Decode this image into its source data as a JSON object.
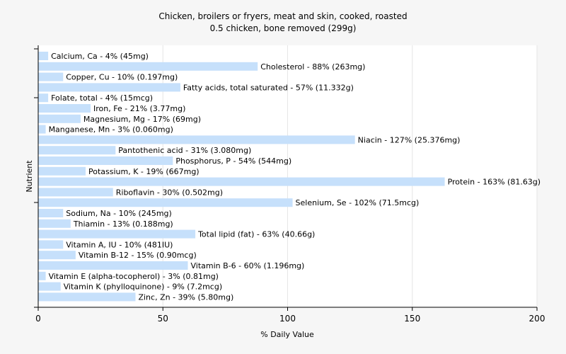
{
  "chart_data": {
    "type": "bar",
    "orientation": "horizontal",
    "title": "Chicken, broilers or fryers, meat and skin, cooked, roasted",
    "subtitle": "0.5 chicken, bone removed (299g)",
    "xlabel": "% Daily Value",
    "ylabel": "Nutrient",
    "xlim": [
      0,
      200
    ],
    "xticks": [
      "0",
      "50",
      "100",
      "150",
      "200"
    ],
    "xtick_values": [
      0,
      50,
      100,
      150,
      200
    ],
    "grid": "vertical",
    "bar_color": "#c6e0fb",
    "background": "#f6f6f6",
    "plot_background": "#ffffff",
    "bars": [
      {
        "label": "Calcium, Ca - 4% (45mg)",
        "value": 4
      },
      {
        "label": "Cholesterol - 88% (263mg)",
        "value": 88
      },
      {
        "label": "Copper, Cu - 10% (0.197mg)",
        "value": 10
      },
      {
        "label": "Fatty acids, total saturated - 57% (11.332g)",
        "value": 57
      },
      {
        "label": "Folate, total - 4% (15mcg)",
        "value": 4
      },
      {
        "label": "Iron, Fe - 21% (3.77mg)",
        "value": 21
      },
      {
        "label": "Magnesium, Mg - 17% (69mg)",
        "value": 17
      },
      {
        "label": "Manganese, Mn - 3% (0.060mg)",
        "value": 3
      },
      {
        "label": "Niacin - 127% (25.376mg)",
        "value": 127
      },
      {
        "label": "Pantothenic acid - 31% (3.080mg)",
        "value": 31
      },
      {
        "label": "Phosphorus, P - 54% (544mg)",
        "value": 54
      },
      {
        "label": "Potassium, K - 19% (667mg)",
        "value": 19
      },
      {
        "label": "Protein - 163% (81.63g)",
        "value": 163
      },
      {
        "label": "Riboflavin - 30% (0.502mg)",
        "value": 30
      },
      {
        "label": "Selenium, Se - 102% (71.5mcg)",
        "value": 102
      },
      {
        "label": "Sodium, Na - 10% (245mg)",
        "value": 10
      },
      {
        "label": "Thiamin - 13% (0.188mg)",
        "value": 13
      },
      {
        "label": "Total lipid (fat) - 63% (40.66g)",
        "value": 63
      },
      {
        "label": "Vitamin A, IU - 10% (481IU)",
        "value": 10
      },
      {
        "label": "Vitamin B-12 - 15% (0.90mcg)",
        "value": 15
      },
      {
        "label": "Vitamin B-6 - 60% (1.196mg)",
        "value": 60
      },
      {
        "label": "Vitamin E (alpha-tocopherol) - 3% (0.81mg)",
        "value": 3
      },
      {
        "label": "Vitamin K (phylloquinone) - 9% (7.2mcg)",
        "value": 9
      },
      {
        "label": "Zinc, Zn - 39% (5.80mg)",
        "value": 39
      }
    ]
  }
}
